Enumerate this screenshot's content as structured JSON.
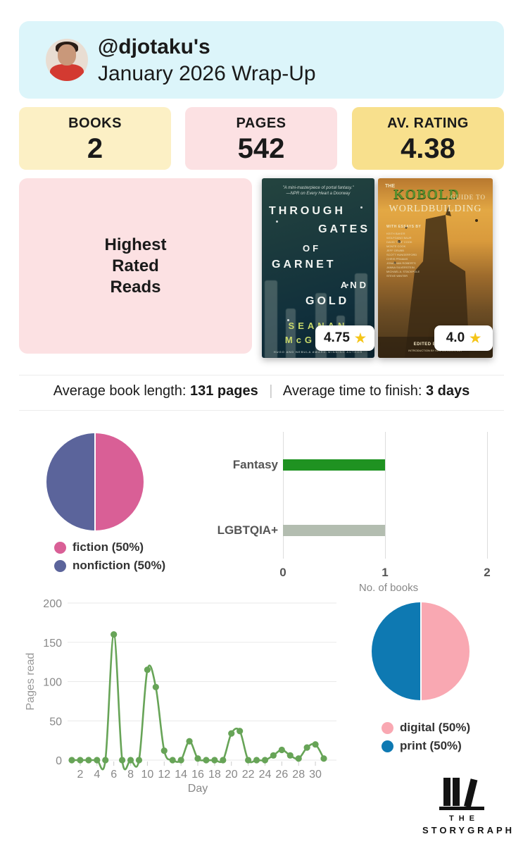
{
  "header": {
    "handle": "@djotaku's",
    "title": "January 2026 Wrap-Up",
    "bg": "#dcf5fa"
  },
  "stats": [
    {
      "label": "BOOKS",
      "value": "2",
      "bg": "#fcf0c5"
    },
    {
      "label": "PAGES",
      "value": "542",
      "bg": "#fce1e3"
    },
    {
      "label": "AV. RATING",
      "value": "4.38",
      "bg": "#f8e08d"
    }
  ],
  "highest_rated": {
    "heading_lines": [
      "Highest",
      "Rated",
      "Reads"
    ],
    "bg": "#fce1e3",
    "star_color": "#f5c518",
    "books": [
      {
        "quote_line1": "\"A mini-masterpiece of portal fantasy.\"",
        "quote_line2": "—NPR on Every Heart a Doorway",
        "title_words": [
          "THROUGH",
          "GATES",
          "OF",
          "GARNET",
          "AND",
          "GOLD"
        ],
        "author_line1": "SEANAN",
        "author_line2": "McGUIRE",
        "footer": "HUGO AND NEBULA AWARD-WINNING AUTHOR",
        "rating": "4.75"
      },
      {
        "title_the": "THE",
        "title_kobold": "KOBOLD",
        "title_guide": "GUIDE TO",
        "title_world": "WORLDBUILDING",
        "essays_heading": "WITH ESSAYS BY",
        "essayists": [
          "KEITH BAKER",
          "WOLFGANG BAUR",
          "DAVID \"ZEB\" COOK",
          "MONTE COOK",
          "JEFF GRUBB",
          "SCOTT HUNGERFORD",
          "CHRIS PRAMAS",
          "JONATHAN ROBERTS",
          "JANNA SILVERSTEIN",
          "MICHAEL A. STACKPOLE",
          "STEVE WINTER"
        ],
        "footer1": "EDITED BY JANNA",
        "footer2": "INTRODUCTION BY KEN SCHOLES, AUT",
        "rating": "4.0"
      }
    ]
  },
  "averages": {
    "book_length_label": "Average book length:",
    "book_length_value": "131 pages",
    "separator": "|",
    "finish_label": "Average time to finish:",
    "finish_value": "3 days"
  },
  "chart_data": [
    {
      "id": "fiction-nonfiction-pie",
      "type": "pie",
      "legend_position": "bottom",
      "slices": [
        {
          "label": "fiction",
          "pct": 50,
          "color": "#d95f96",
          "legend": "fiction (50%)"
        },
        {
          "label": "nonfiction",
          "pct": 50,
          "color": "#5b649b",
          "legend": "nonfiction (50%)"
        }
      ]
    },
    {
      "id": "genre-bars",
      "type": "bar",
      "orientation": "horizontal",
      "categories": [
        "Fantasy",
        "LGBTQIA+"
      ],
      "values": [
        1,
        1
      ],
      "bar_colors": [
        "#1f9221",
        "#b3bdb0"
      ],
      "xlabel": "No. of books",
      "xticks": [
        0,
        1,
        2
      ],
      "xlim": [
        0,
        2
      ],
      "grid": true
    },
    {
      "id": "pages-per-day-line",
      "type": "line",
      "x": [
        1,
        2,
        3,
        4,
        5,
        6,
        7,
        8,
        9,
        10,
        11,
        12,
        13,
        14,
        15,
        16,
        17,
        18,
        19,
        20,
        21,
        22,
        23,
        24,
        25,
        26,
        27,
        28,
        29,
        30,
        31
      ],
      "values": [
        0,
        0,
        0,
        0,
        0,
        160,
        0,
        0,
        0,
        115,
        93,
        12,
        0,
        0,
        24,
        2,
        0,
        0,
        0,
        34,
        37,
        0,
        0,
        0,
        6,
        13,
        6,
        2,
        16,
        20,
        2
      ],
      "xlabel": "Day",
      "ylabel": "Pages read",
      "xticks": [
        2,
        4,
        6,
        8,
        10,
        12,
        14,
        16,
        18,
        20,
        22,
        24,
        26,
        28,
        30
      ],
      "yticks": [
        0,
        50,
        100,
        150,
        200
      ],
      "ylim": [
        0,
        200
      ],
      "line_color": "#67a457",
      "grid": true
    },
    {
      "id": "format-pie",
      "type": "pie",
      "legend_position": "bottom",
      "slices": [
        {
          "label": "digital",
          "pct": 50,
          "color": "#f9a8b2",
          "legend": "digital (50%)"
        },
        {
          "label": "print",
          "pct": 50,
          "color": "#0e79b2",
          "legend": "print (50%)"
        }
      ]
    }
  ],
  "logo": {
    "line1": "THE",
    "line2": "STORYGRAPH"
  }
}
